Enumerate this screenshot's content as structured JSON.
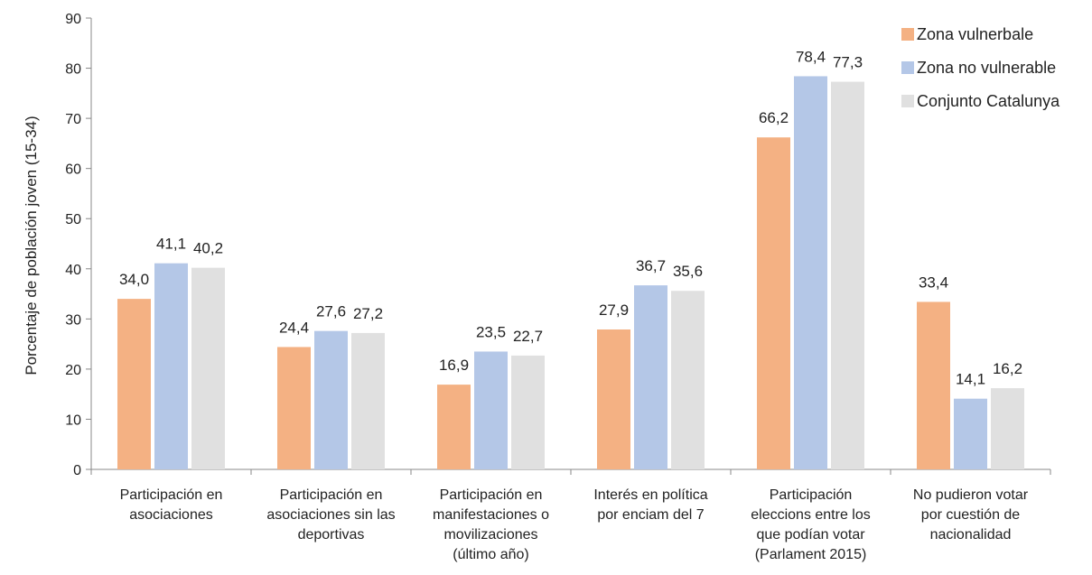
{
  "chart_data": {
    "type": "bar",
    "ylabel": "Porcentaje de población joven  (15-34)",
    "ylim": [
      0,
      90
    ],
    "yticks": [
      0,
      10,
      20,
      30,
      40,
      50,
      60,
      70,
      80,
      90
    ],
    "grid": false,
    "legend_position": "top-right",
    "categories": [
      [
        "Participación en",
        "asociaciones"
      ],
      [
        "Participación en",
        "asociaciones sin las",
        "deportivas"
      ],
      [
        "Participación en",
        "manifestaciones o",
        "movilizaciones",
        "(último año)"
      ],
      [
        "Interés en política",
        "por enciam del 7"
      ],
      [
        "Participación",
        "eleccions entre los",
        "que podían votar",
        "(Parlament 2015)"
      ],
      [
        "No pudieron votar",
        "por cuestión de",
        "nacionalidad"
      ]
    ],
    "series": [
      {
        "name": "Zona vulnerbale",
        "color": "#f4b183",
        "values": [
          34.0,
          24.4,
          16.9,
          27.9,
          66.2,
          33.4
        ],
        "labels": [
          "34,0",
          "24,4",
          "16,9",
          "27,9",
          "66,2",
          "33,4"
        ]
      },
      {
        "name": "Zona no vulnerable",
        "color": "#b4c7e7",
        "values": [
          41.1,
          27.6,
          23.5,
          36.7,
          78.4,
          14.1
        ],
        "labels": [
          "41,1",
          "27,6",
          "23,5",
          "36,7",
          "78,4",
          "14,1"
        ]
      },
      {
        "name": "Conjunto Catalunya",
        "color": "#e0e0e0",
        "values": [
          40.2,
          27.2,
          22.7,
          35.6,
          77.3,
          16.2
        ],
        "labels": [
          "40,2",
          "27,2",
          "22,7",
          "35,6",
          "77,3",
          "16,2"
        ]
      }
    ]
  }
}
